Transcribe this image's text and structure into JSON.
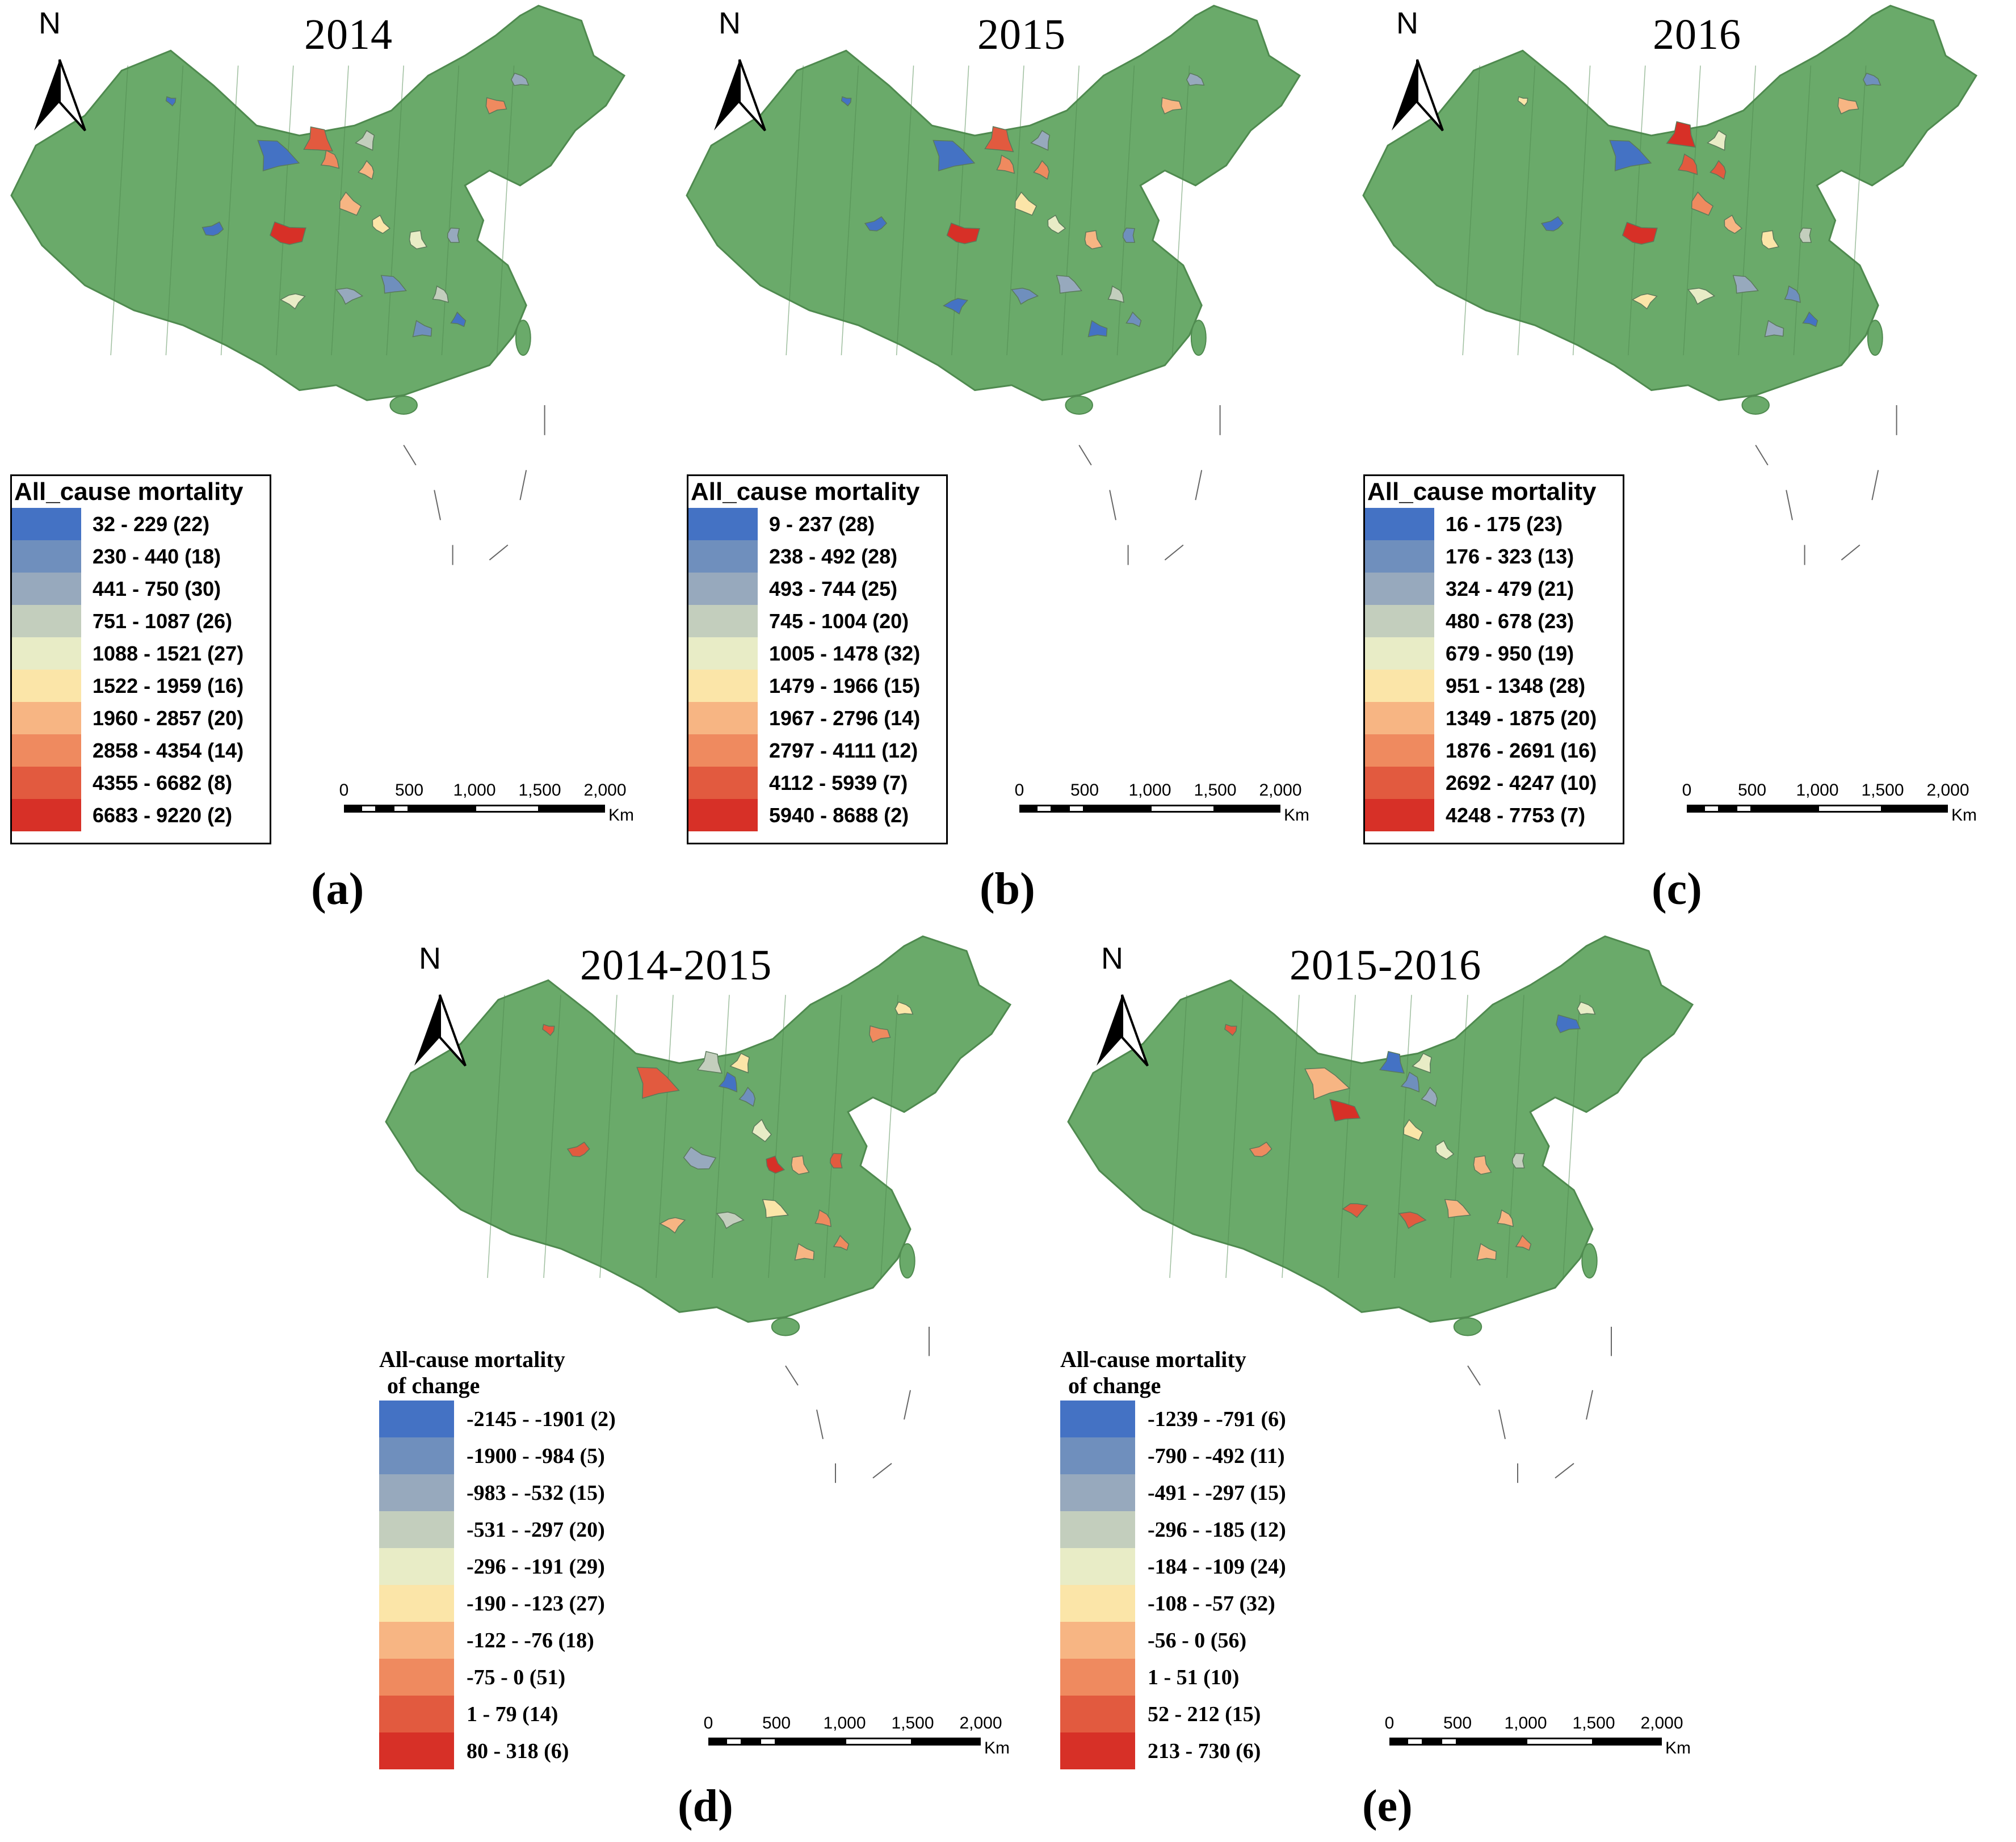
{
  "colors": {
    "land": "#6aaa6a",
    "border": "#4f8a4f",
    "ramp": [
      "#4472c4",
      "#6f8fbd",
      "#97a9bd",
      "#c3cebd",
      "#e8ecc6",
      "#fbe5a8",
      "#f7b583",
      "#ef8a5f",
      "#e25a3f",
      "#d73027"
    ]
  },
  "north_label": "N",
  "scale": {
    "ticks": [
      "0",
      "500",
      "1,000",
      "1,500",
      "2,000"
    ],
    "unit": "Km"
  },
  "panels": {
    "a": {
      "title": "2014",
      "label": "(a)",
      "legend_title": "All_cause mortality",
      "legend": [
        "32 - 229 (22)",
        "230 - 440 (18)",
        "441 - 750 (30)",
        "751 - 1087 (26)",
        "1088 - 1521 (27)",
        "1522 - 1959 (16)",
        "1960 - 2857 (20)",
        "2858 - 4354 (14)",
        "4355 - 6682 (8)",
        "6683 - 9220 (2)"
      ]
    },
    "b": {
      "title": "2015",
      "label": "(b)",
      "legend_title": "All_cause mortality",
      "legend": [
        "9 - 237 (28)",
        "238 - 492 (28)",
        "493 - 744 (25)",
        "745 - 1004 (20)",
        "1005 - 1478 (32)",
        "1479 - 1966 (15)",
        "1967 - 2796 (14)",
        "2797 - 4111 (12)",
        "4112 - 5939 (7)",
        "5940 - 8688 (2)"
      ]
    },
    "c": {
      "title": "2016",
      "label": "(c)",
      "legend_title": "All_cause mortality",
      "legend": [
        "16 - 175 (23)",
        "176 - 323 (13)",
        "324 - 479 (21)",
        "480 - 678 (23)",
        "679 - 950 (19)",
        "951 - 1348 (28)",
        "1349 - 1875 (20)",
        "1876 - 2691 (16)",
        "2692 - 4247 (10)",
        "4248 - 7753 (7)"
      ]
    },
    "d": {
      "title": "2014-2015",
      "label": "(d)",
      "legend_title_1": "All-cause mortality",
      "legend_title_2": "of change",
      "legend": [
        "-2145 - -1901 (2)",
        "-1900 - -984 (5)",
        "-983 - -532 (15)",
        "-531 - -297 (20)",
        "-296 - -191 (29)",
        "-190 - -123 (27)",
        "-122 - -76 (18)",
        "-75 - 0 (51)",
        "1 - 79 (14)",
        "80 - 318 (6)"
      ]
    },
    "e": {
      "title": "2015-2016",
      "label": "(e)",
      "legend_title_1": "All-cause mortality",
      "legend_title_2": "of change",
      "legend": [
        "-1239 - -791 (6)",
        "-790 - -492 (11)",
        "-491 - -297 (15)",
        "-296 - -185 (12)",
        "-184 - -109 (24)",
        "-108 - -57 (32)",
        "-56 - 0 (56)",
        "1 - 51 (10)",
        "52 - 212 (15)",
        "213 - 730 (6)"
      ]
    }
  }
}
